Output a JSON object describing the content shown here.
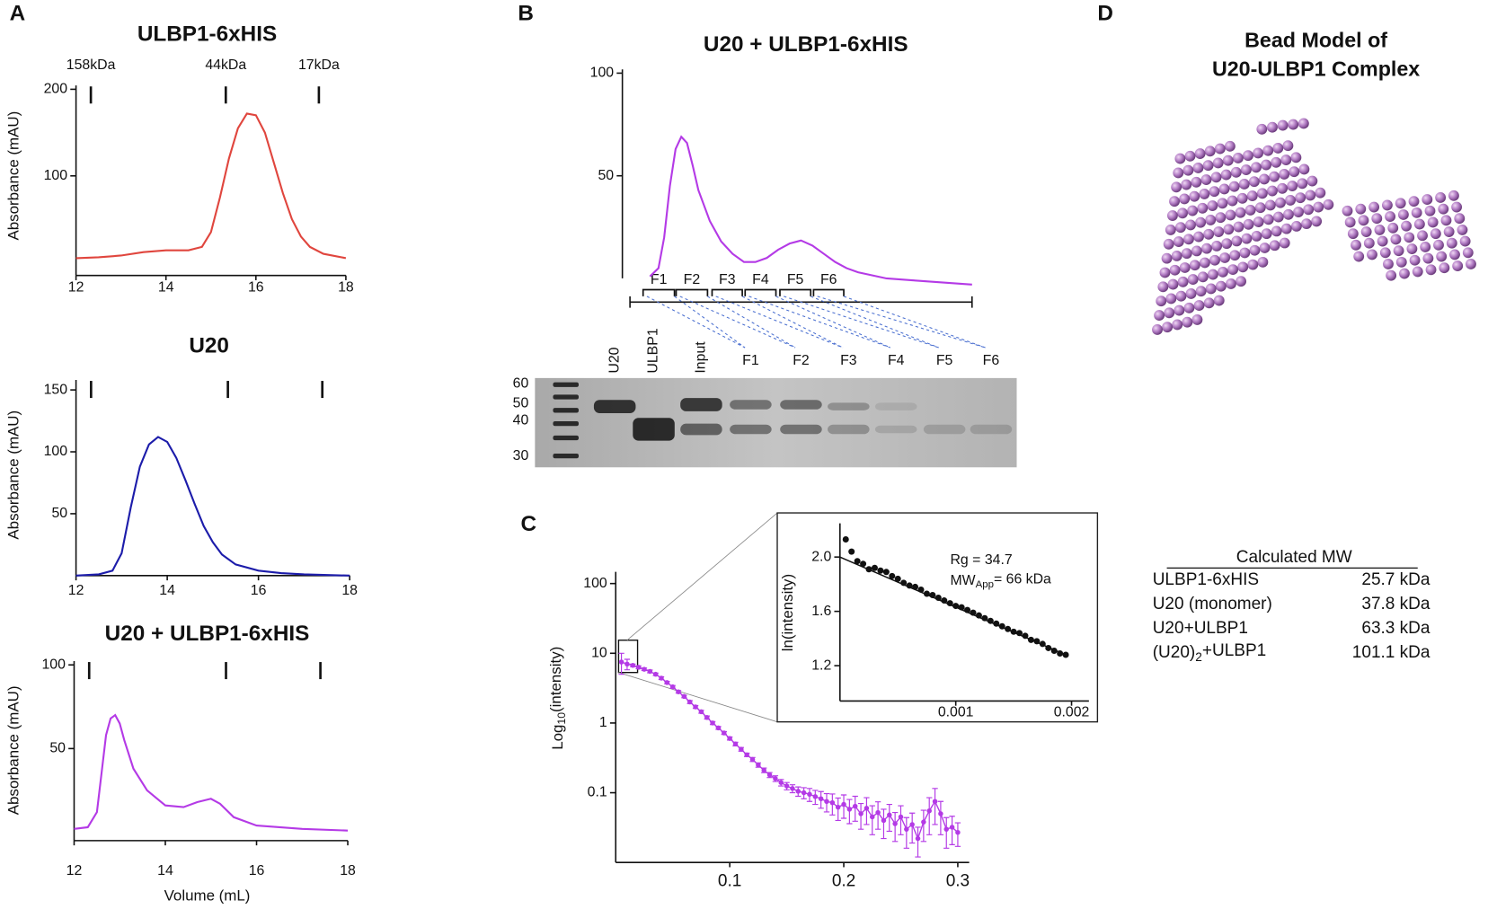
{
  "panel_labels": [
    "A",
    "B",
    "C",
    "D"
  ],
  "chart_data": [
    {
      "type": "line",
      "title": "ULBP1-6xHIS",
      "ylabel": "Absorbance (mAU)",
      "color": "#e0463e",
      "xlim": [
        12,
        18
      ],
      "xticks": [
        12,
        14,
        16,
        18
      ],
      "ylim": [
        -15,
        200
      ],
      "yticks": [
        100,
        200
      ],
      "markers": [
        12.33,
        15.33,
        17.4
      ],
      "marker_labels": [
        "158kDa",
        "44kDa",
        "17kDa"
      ],
      "x": [
        12,
        12.5,
        13,
        13.5,
        14,
        14.5,
        14.8,
        15,
        15.2,
        15.4,
        15.6,
        15.8,
        16,
        16.2,
        16.4,
        16.6,
        16.8,
        17,
        17.2,
        17.5,
        18
      ],
      "values": [
        5,
        6,
        8,
        12,
        14,
        14,
        18,
        35,
        75,
        120,
        155,
        172,
        170,
        150,
        115,
        80,
        50,
        30,
        18,
        10,
        5
      ]
    },
    {
      "type": "line",
      "title": "U20",
      "ylabel": "Absorbance (mAU)",
      "color": "#1c1caa",
      "xlim": [
        12,
        18
      ],
      "xticks": [
        12,
        14,
        16,
        18
      ],
      "ylim": [
        0,
        155
      ],
      "yticks": [
        50,
        100,
        150
      ],
      "markers": [
        12.33,
        15.33,
        17.4
      ],
      "x": [
        12,
        12.5,
        12.8,
        13,
        13.2,
        13.4,
        13.6,
        13.8,
        14,
        14.2,
        14.4,
        14.6,
        14.8,
        15,
        15.2,
        15.5,
        16,
        16.5,
        17,
        18
      ],
      "values": [
        0,
        1,
        4,
        18,
        55,
        88,
        106,
        112,
        108,
        95,
        77,
        58,
        40,
        27,
        17,
        9,
        4,
        2,
        1,
        0
      ]
    },
    {
      "type": "line",
      "title": "U20 + ULBP1-6xHIS",
      "ylabel": "Absorbance (mAU)",
      "xlabel": "Volume (mL)",
      "color": "#b43ae6",
      "xlim": [
        12,
        18
      ],
      "xticks": [
        12,
        14,
        16,
        18
      ],
      "ylim": [
        -5,
        100
      ],
      "yticks": [
        50,
        100
      ],
      "markers": [
        12.33,
        15.33,
        17.4
      ],
      "x": [
        12,
        12.3,
        12.5,
        12.6,
        12.7,
        12.8,
        12.9,
        13.0,
        13.1,
        13.3,
        13.6,
        14,
        14.4,
        14.7,
        15,
        15.2,
        15.5,
        16,
        16.5,
        17,
        18
      ],
      "values": [
        2,
        3,
        12,
        35,
        58,
        68,
        70,
        65,
        55,
        38,
        25,
        16,
        15,
        18,
        20,
        17,
        9,
        4,
        3,
        2,
        1
      ]
    },
    {
      "type": "line",
      "title": "U20 + ULBP1-6xHIS",
      "color": "#b43ae6",
      "xlim": [
        12,
        18
      ],
      "ylim": [
        -11.5,
        100
      ],
      "yticks": [
        50,
        100
      ],
      "fractions": [
        {
          "name": "F1",
          "range": [
            12.23,
            12.78
          ]
        },
        {
          "name": "F2",
          "range": [
            12.81,
            13.36
          ]
        },
        {
          "name": "F3",
          "range": [
            13.44,
            13.97
          ]
        },
        {
          "name": "F4",
          "range": [
            14.02,
            14.56
          ]
        },
        {
          "name": "F5",
          "range": [
            14.63,
            15.17
          ]
        },
        {
          "name": "F6",
          "range": [
            15.22,
            15.75
          ]
        }
      ],
      "x": [
        12.35,
        12.5,
        12.6,
        12.7,
        12.8,
        12.9,
        13.0,
        13.1,
        13.2,
        13.4,
        13.6,
        13.8,
        14,
        14.2,
        14.4,
        14.6,
        14.8,
        15.0,
        15.2,
        15.4,
        15.6,
        15.8,
        16,
        16.5,
        17,
        17.5,
        18
      ],
      "values": [
        1,
        5,
        20,
        45,
        63,
        69,
        66,
        55,
        43,
        28,
        18,
        12,
        8,
        8,
        10,
        14,
        17,
        18.5,
        16,
        12,
        8,
        5,
        3,
        0,
        -1,
        -2,
        -3
      ]
    },
    {
      "type": "scatter",
      "ylabel": {
        "text": "Log",
        "sub": "10",
        "rest": "(intensity)"
      },
      "color": "#b43ae6",
      "log_y": true,
      "xlim": [
        0,
        0.31
      ],
      "xticks": [
        0.1,
        0.2,
        0.3
      ],
      "ylim": [
        0.01,
        130
      ],
      "yticks": [
        100,
        10,
        1,
        0.1
      ],
      "x": [
        0.005,
        0.01,
        0.015,
        0.02,
        0.025,
        0.03,
        0.035,
        0.04,
        0.045,
        0.05,
        0.055,
        0.06,
        0.065,
        0.07,
        0.075,
        0.08,
        0.085,
        0.09,
        0.095,
        0.1,
        0.105,
        0.11,
        0.115,
        0.12,
        0.125,
        0.13,
        0.135,
        0.14,
        0.145,
        0.15,
        0.155,
        0.16,
        0.165,
        0.17,
        0.175,
        0.18,
        0.185,
        0.19,
        0.195,
        0.2,
        0.205,
        0.21,
        0.215,
        0.22,
        0.225,
        0.23,
        0.235,
        0.24,
        0.245,
        0.25,
        0.255,
        0.26,
        0.265,
        0.27,
        0.275,
        0.28,
        0.285,
        0.29,
        0.295,
        0.3
      ],
      "values": [
        7.5,
        7.0,
        6.7,
        6.3,
        5.9,
        5.5,
        5.0,
        4.4,
        3.8,
        3.3,
        2.8,
        2.4,
        2.0,
        1.7,
        1.45,
        1.2,
        1.0,
        0.85,
        0.72,
        0.6,
        0.5,
        0.42,
        0.35,
        0.3,
        0.25,
        0.21,
        0.18,
        0.16,
        0.14,
        0.125,
        0.115,
        0.105,
        0.1,
        0.095,
        0.088,
        0.082,
        0.075,
        0.072,
        0.062,
        0.068,
        0.058,
        0.064,
        0.05,
        0.06,
        0.045,
        0.052,
        0.04,
        0.048,
        0.036,
        0.045,
        0.03,
        0.035,
        0.022,
        0.038,
        0.055,
        0.075,
        0.05,
        0.03,
        0.032,
        0.027
      ],
      "errors": [
        2.5,
        1.2,
        0.3,
        0.3,
        0.25,
        0.25,
        0.2,
        0.2,
        0.15,
        0.15,
        0.12,
        0.1,
        0.1,
        0.08,
        0.07,
        0.06,
        0.05,
        0.04,
        0.035,
        0.03,
        0.03,
        0.025,
        0.02,
        0.02,
        0.018,
        0.016,
        0.015,
        0.015,
        0.015,
        0.015,
        0.015,
        0.016,
        0.018,
        0.02,
        0.02,
        0.022,
        0.022,
        0.024,
        0.022,
        0.025,
        0.022,
        0.025,
        0.02,
        0.025,
        0.02,
        0.022,
        0.018,
        0.02,
        0.016,
        0.02,
        0.014,
        0.016,
        0.01,
        0.018,
        0.03,
        0.04,
        0.025,
        0.014,
        0.014,
        0.01
      ]
    },
    {
      "type": "scatter",
      "ylabel": "ln(intensity)",
      "color": "#111111",
      "xlim": [
        0,
        0.00215
      ],
      "xticks": [
        0.001,
        0.002
      ],
      "ylim": [
        0.94,
        2.22
      ],
      "yticks": [
        {
          "value": 2.0,
          "label": "2.0"
        },
        1.6,
        1.2
      ],
      "annotations": [
        "Rg = 34.7",
        {
          "text": "MW",
          "sub": "App",
          "rest": "= 66 kDa"
        }
      ],
      "x": [
        5e-05,
        0.0001,
        0.00015,
        0.0002,
        0.00025,
        0.0003,
        0.00035,
        0.0004,
        0.00045,
        0.0005,
        0.00055,
        0.0006,
        0.00065,
        0.0007,
        0.00075,
        0.0008,
        0.00085,
        0.0009,
        0.00095,
        0.001,
        0.00105,
        0.0011,
        0.00115,
        0.0012,
        0.00125,
        0.0013,
        0.00135,
        0.0014,
        0.00145,
        0.0015,
        0.00155,
        0.0016,
        0.00165,
        0.0017,
        0.00175,
        0.0018,
        0.00185,
        0.0019,
        0.00195
      ],
      "values": [
        2.13,
        2.04,
        1.97,
        1.95,
        1.91,
        1.92,
        1.9,
        1.89,
        1.86,
        1.84,
        1.81,
        1.79,
        1.78,
        1.76,
        1.73,
        1.72,
        1.7,
        1.68,
        1.66,
        1.64,
        1.63,
        1.61,
        1.59,
        1.57,
        1.55,
        1.53,
        1.51,
        1.49,
        1.47,
        1.45,
        1.44,
        1.42,
        1.39,
        1.38,
        1.36,
        1.33,
        1.31,
        1.29,
        1.28
      ],
      "fit": {
        "x": [
          0,
          0.00195
        ],
        "values": [
          2.0,
          1.28
        ]
      }
    }
  ],
  "gel": {
    "lanes": [
      "U20",
      "ULBP1",
      "Input",
      "F1",
      "F2",
      "F3",
      "F4",
      "F5",
      "F6"
    ],
    "mw_markers": [
      60,
      50,
      40,
      30
    ]
  },
  "bead_model": {
    "title": [
      "Bead Model of",
      "U20-ULBP1 Complex"
    ]
  },
  "table": {
    "title": "Calculated MW",
    "rows": [
      [
        "ULBP1-6xHIS",
        "25.7 kDa"
      ],
      [
        "U20 (monomer)",
        "37.8 kDa"
      ],
      [
        "U20+ULBP1",
        "63.3 kDa"
      ],
      [
        {
          "text": "(U20)",
          "sub": "2",
          "rest": "+ULBP1"
        },
        "101.1 kDa"
      ]
    ]
  }
}
